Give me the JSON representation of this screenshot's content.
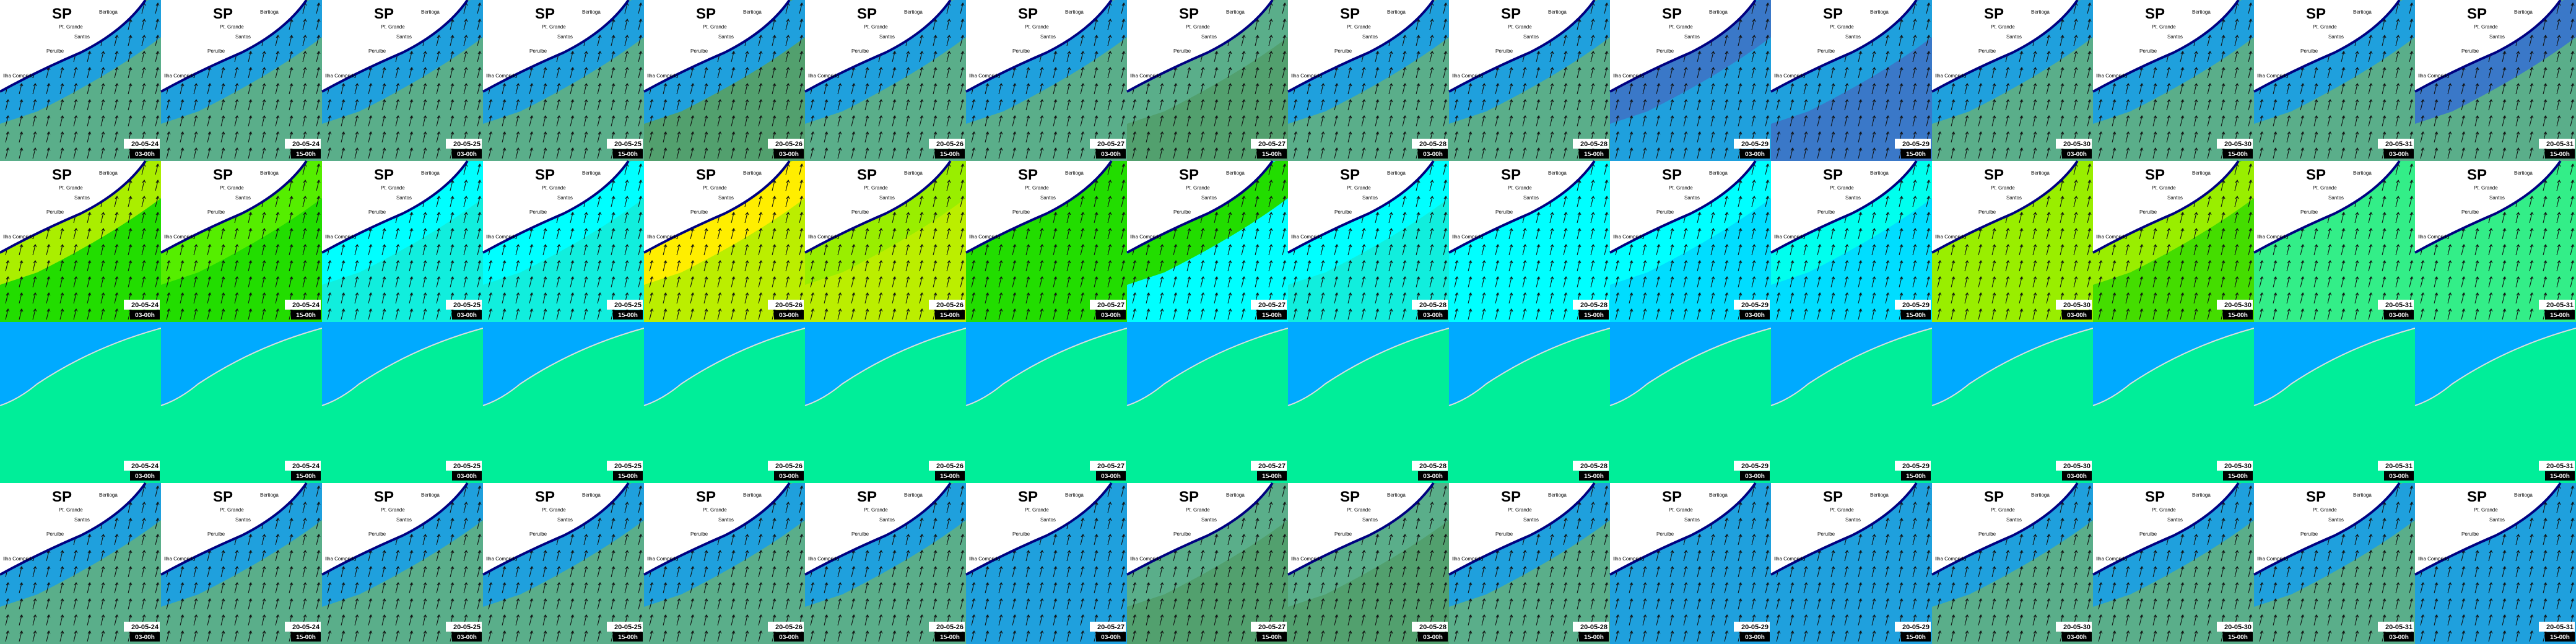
{
  "title": "SP",
  "places": [
    "Bertioga",
    "Pt. Grande",
    "Santos",
    "Peruíbe",
    "Ilha Comprida"
  ],
  "columns": [
    {
      "date": "20-05-24",
      "time": "03-00h"
    },
    {
      "date": "20-05-24",
      "time": "15-00h"
    },
    {
      "date": "20-05-25",
      "time": "03-00h"
    },
    {
      "date": "20-05-25",
      "time": "15-00h"
    },
    {
      "date": "20-05-26",
      "time": "03-00h"
    },
    {
      "date": "20-05-26",
      "time": "15-00h"
    },
    {
      "date": "20-05-27",
      "time": "03-00h"
    },
    {
      "date": "20-05-27",
      "time": "15-00h"
    },
    {
      "date": "20-05-28",
      "time": "03-00h"
    },
    {
      "date": "20-05-28",
      "time": "15-00h"
    },
    {
      "date": "20-05-29",
      "time": "03-00h"
    },
    {
      "date": "20-05-29",
      "time": "15-00h"
    },
    {
      "date": "20-05-30",
      "time": "03-00h"
    },
    {
      "date": "20-05-30",
      "time": "15-00h"
    },
    {
      "date": "20-05-31",
      "time": "03-00h"
    },
    {
      "date": "20-05-31",
      "time": "15-00h"
    }
  ]
}
